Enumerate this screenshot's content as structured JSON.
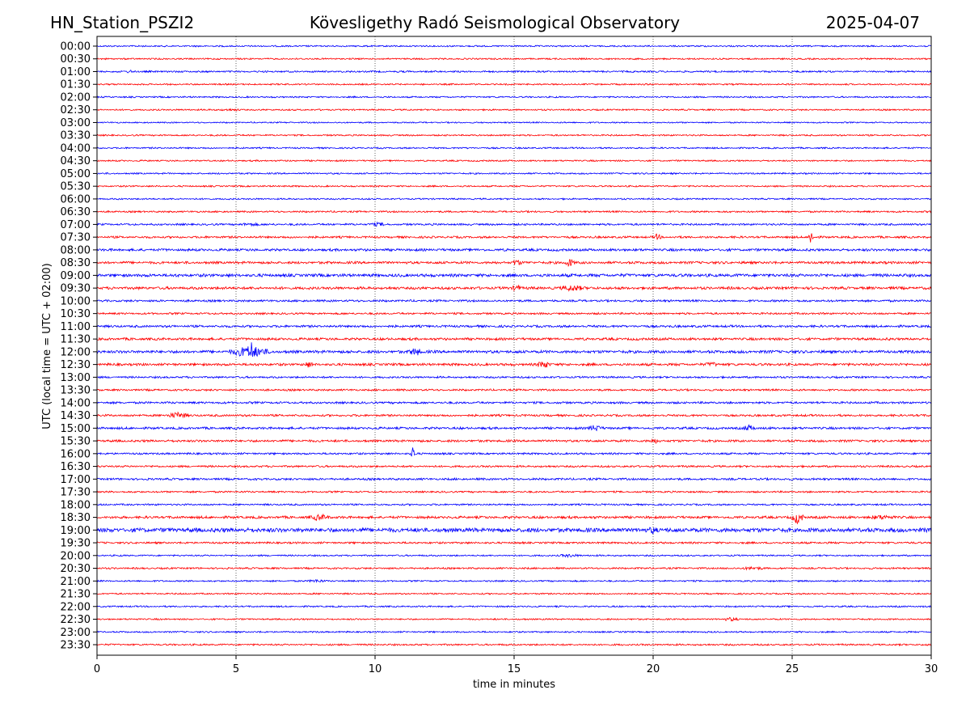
{
  "chart_data": {
    "type": "line",
    "title_left": "HN_Station_PSZI2",
    "title": "Kövesligethy Radó Seismological Observatory",
    "title_right": "2025-04-07",
    "xlabel": "time in minutes",
    "ylabel": "UTC (local time = UTC + 02:00)",
    "xlim": [
      0,
      30
    ],
    "x_ticks": [
      0,
      5,
      10,
      15,
      20,
      25,
      30
    ],
    "grid": "vertical dotted at x ticks",
    "row_labels": [
      "00:00",
      "00:30",
      "01:00",
      "01:30",
      "02:00",
      "02:30",
      "03:00",
      "03:30",
      "04:00",
      "04:30",
      "05:00",
      "05:30",
      "06:00",
      "06:30",
      "07:00",
      "07:30",
      "08:00",
      "08:30",
      "09:00",
      "09:30",
      "10:00",
      "10:30",
      "11:00",
      "11:30",
      "12:00",
      "12:30",
      "13:00",
      "13:30",
      "14:00",
      "14:30",
      "15:00",
      "15:30",
      "16:00",
      "16:30",
      "17:00",
      "17:30",
      "18:00",
      "18:30",
      "19:00",
      "19:30",
      "20:00",
      "20:30",
      "21:00",
      "21:30",
      "22:00",
      "22:30",
      "23:00",
      "23:30"
    ],
    "series_colors": [
      "#0000ff",
      "#ff0000"
    ],
    "noise_level": [
      0.8,
      0.8,
      0.9,
      0.8,
      0.8,
      0.8,
      0.7,
      0.8,
      0.8,
      0.8,
      0.8,
      0.8,
      0.8,
      0.9,
      1.0,
      1.1,
      1.3,
      1.3,
      1.6,
      1.4,
      1.1,
      1.0,
      1.2,
      1.3,
      1.5,
      1.3,
      1.0,
      1.0,
      1.1,
      1.1,
      1.2,
      1.2,
      1.0,
      1.0,
      1.1,
      0.9,
      0.9,
      1.3,
      2.2,
      1.0,
      0.8,
      0.9,
      0.8,
      0.8,
      0.8,
      0.8,
      0.8,
      0.9
    ],
    "events": [
      {
        "row": 2,
        "minute": 1.0,
        "duration": 0.4,
        "amplitude": 2
      },
      {
        "row": 5,
        "minute": 4.2,
        "duration": 1.2,
        "amplitude": 1.5
      },
      {
        "row": 14,
        "minute": 5.0,
        "duration": 1.0,
        "amplitude": 2
      },
      {
        "row": 14,
        "minute": 9.7,
        "duration": 0.8,
        "amplitude": 2.5
      },
      {
        "row": 15,
        "minute": 20.0,
        "duration": 0.3,
        "amplitude": 4
      },
      {
        "row": 15,
        "minute": 25.6,
        "duration": 0.15,
        "amplitude": 10
      },
      {
        "row": 17,
        "minute": 14.9,
        "duration": 0.4,
        "amplitude": 4
      },
      {
        "row": 17,
        "minute": 16.8,
        "duration": 0.4,
        "amplitude": 5
      },
      {
        "row": 19,
        "minute": 14.9,
        "duration": 0.4,
        "amplitude": 4
      },
      {
        "row": 19,
        "minute": 16.6,
        "duration": 1.0,
        "amplitude": 4
      },
      {
        "row": 24,
        "minute": 4.8,
        "duration": 1.4,
        "amplitude": 7
      },
      {
        "row": 24,
        "minute": 5.45,
        "duration": 0.2,
        "amplitude": 14
      },
      {
        "row": 24,
        "minute": 11.2,
        "duration": 0.5,
        "amplitude": 5
      },
      {
        "row": 25,
        "minute": 7.4,
        "duration": 0.4,
        "amplitude": 4
      },
      {
        "row": 25,
        "minute": 15.8,
        "duration": 0.5,
        "amplitude": 5
      },
      {
        "row": 25,
        "minute": 21.8,
        "duration": 0.6,
        "amplitude": 3
      },
      {
        "row": 29,
        "minute": 2.5,
        "duration": 0.8,
        "amplitude": 4
      },
      {
        "row": 30,
        "minute": 17.6,
        "duration": 0.6,
        "amplitude": 4
      },
      {
        "row": 30,
        "minute": 23.2,
        "duration": 0.5,
        "amplitude": 4
      },
      {
        "row": 31,
        "minute": 19.8,
        "duration": 0.5,
        "amplitude": 3
      },
      {
        "row": 32,
        "minute": 11.3,
        "duration": 0.12,
        "amplitude": 11
      },
      {
        "row": 37,
        "minute": 7.6,
        "duration": 0.8,
        "amplitude": 4
      },
      {
        "row": 37,
        "minute": 25.0,
        "duration": 0.4,
        "amplitude": 8
      },
      {
        "row": 37,
        "minute": 27.6,
        "duration": 1.2,
        "amplitude": 3
      },
      {
        "row": 38,
        "minute": 19.8,
        "duration": 0.4,
        "amplitude": 5
      },
      {
        "row": 40,
        "minute": 16.5,
        "duration": 1.0,
        "amplitude": 2
      },
      {
        "row": 41,
        "minute": 23.0,
        "duration": 1.2,
        "amplitude": 2
      },
      {
        "row": 42,
        "minute": 7.5,
        "duration": 0.8,
        "amplitude": 2
      },
      {
        "row": 45,
        "minute": 22.5,
        "duration": 0.6,
        "amplitude": 2.5
      }
    ]
  }
}
